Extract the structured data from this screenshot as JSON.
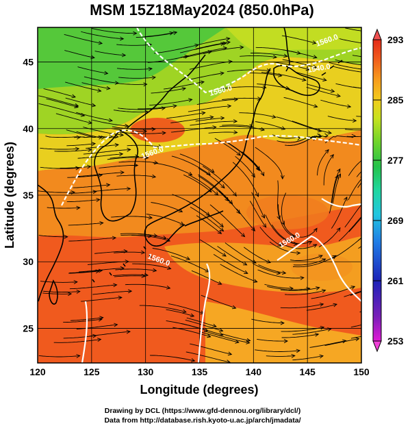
{
  "title": "MSM 15Z18May2024 (850.0hPa)",
  "x_axis": {
    "label": "Longitude (degrees)",
    "ticks": [
      "120",
      "125",
      "130",
      "135",
      "140",
      "145",
      "150"
    ],
    "range": [
      120,
      150
    ]
  },
  "y_axis": {
    "label": "Latitude  (degrees)",
    "ticks": [
      "25",
      "30",
      "35",
      "40",
      "45"
    ],
    "range": [
      22.4,
      47.6
    ]
  },
  "colorbar": {
    "ticks": [
      "293",
      "285",
      "277",
      "269",
      "261",
      "253"
    ],
    "min": 253,
    "max": 293,
    "colors": [
      "#e01bd6",
      "#7a1fb8",
      "#1c22b8",
      "#1f7de6",
      "#21c6e0",
      "#1fd7a0",
      "#25c24a",
      "#6fd42a",
      "#c8e21f",
      "#f2cc1c",
      "#f79a1c",
      "#f0581c",
      "#e32a18"
    ]
  },
  "contours": [
    {
      "label": "1560.0"
    },
    {
      "label": "1540.0"
    },
    {
      "label": "1560.0"
    },
    {
      "label": "1560.0"
    },
    {
      "label": "1560.0"
    },
    {
      "label": "1560.0"
    }
  ],
  "credits": {
    "line1": "Drawing by DCL (https://www.gfd-dennou.org/library/dcl/)",
    "line2": "Data from http://database.rish.kyoto-u.ac.jp/arch/jmadata/"
  }
}
